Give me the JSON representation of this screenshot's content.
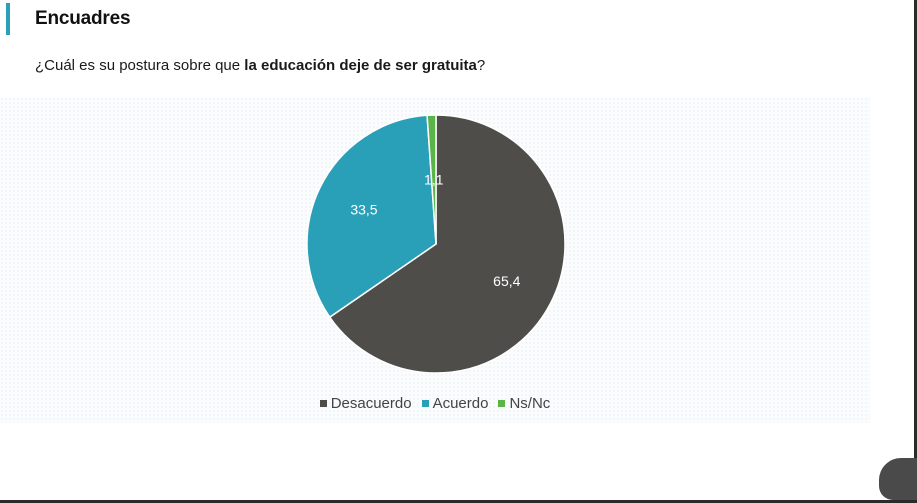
{
  "header": {
    "title": "Encuadres",
    "accent_color": "#2aa0b8"
  },
  "question": {
    "prefix": "¿Cuál es su postura sobre que ",
    "emphasis": "la educación deje de ser gratuita",
    "suffix": "?"
  },
  "chart_data": {
    "type": "pie",
    "title": "",
    "labels": [
      "Desacuerdo",
      "Acuerdo",
      "Ns/Nc"
    ],
    "values": [
      65.4,
      33.5,
      1.1
    ],
    "value_labels": [
      "65,4",
      "33,5",
      "1,1"
    ],
    "colors": [
      "#4f4d4a",
      "#2aa0b8",
      "#5bb447"
    ],
    "start_angle_deg": 0,
    "direction": "clockwise",
    "legend_position": "bottom"
  }
}
